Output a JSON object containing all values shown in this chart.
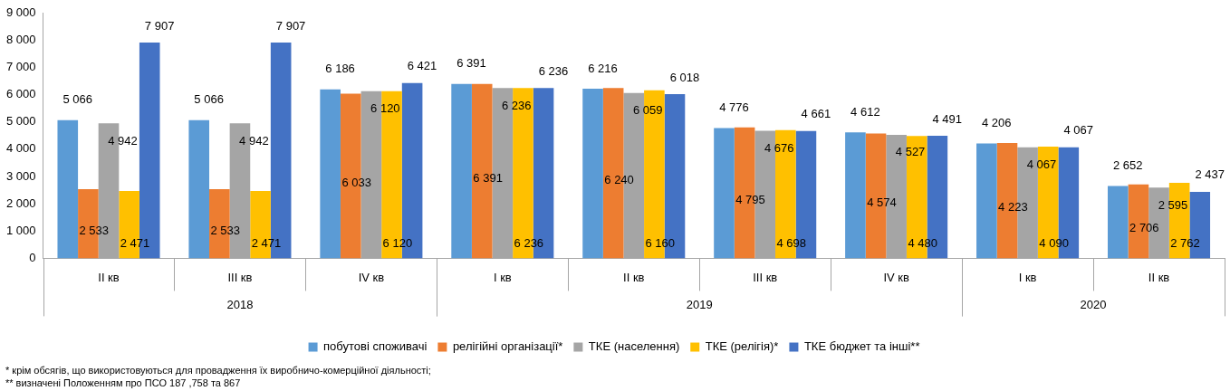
{
  "chart_data": {
    "type": "bar",
    "categories": [
      "II кв",
      "III кв",
      "IV кв",
      "I кв",
      "II кв",
      "III кв",
      "IV кв",
      "I кв",
      "II кв"
    ],
    "series": [
      {
        "name": "побутові споживачі",
        "color": "#5b9bd5",
        "values": [
          5066,
          5066,
          6186,
          6391,
          6216,
          4776,
          4612,
          4206,
          2652
        ],
        "value_labels": [
          "5 066",
          "5 066",
          "6 186",
          "6 391",
          "6 216",
          "4 776",
          "4 612",
          "4 206",
          "2 652"
        ]
      },
      {
        "name": "релігійні організації*",
        "color": "#ed7d31",
        "values": [
          2533,
          2533,
          6033,
          6391,
          6240,
          4795,
          4574,
          4223,
          2706
        ],
        "value_labels": [
          "2 533",
          "2 533",
          "6 033",
          "6 391",
          "6 240",
          "4 795",
          "4 574",
          "4 223",
          "2 706"
        ]
      },
      {
        "name": "ТКЕ (населення)",
        "color": "#a5a5a5",
        "values": [
          4942,
          4942,
          6120,
          6236,
          6059,
          4676,
          4527,
          4067,
          2595
        ],
        "value_labels": [
          "4 942",
          "4 942",
          "6 120",
          "6 236",
          "6 059",
          "4 676",
          "4 527",
          "4 067",
          "2 595"
        ]
      },
      {
        "name": "ТКЕ (релігія)*",
        "color": "#ffc000",
        "values": [
          2471,
          2471,
          6120,
          6236,
          6160,
          4698,
          4480,
          4090,
          2762
        ],
        "value_labels": [
          "2 471",
          "2 471",
          "6 120",
          "6 236",
          "6 160",
          "4 698",
          "4 480",
          "4 090",
          "2 762"
        ]
      },
      {
        "name": "ТКЕ бюджет та інші**",
        "color": "#4472c4",
        "values": [
          7907,
          7907,
          6421,
          6236,
          6018,
          4661,
          4491,
          4067,
          2437
        ],
        "value_labels": [
          "7 907",
          "7 907",
          "6 421",
          "6 236",
          "6 018",
          "4 661",
          "4 491",
          "4 067",
          "2 437"
        ]
      }
    ],
    "ylim": [
      0,
      9000
    ],
    "yticks": [
      {
        "value": 0,
        "label": "0"
      },
      {
        "value": 1000,
        "label": "1 000"
      },
      {
        "value": 2000,
        "label": "2 000"
      },
      {
        "value": 3000,
        "label": "3 000"
      },
      {
        "value": 4000,
        "label": "4 000"
      },
      {
        "value": 5000,
        "label": "5 000"
      },
      {
        "value": 6000,
        "label": "6 000"
      },
      {
        "value": 7000,
        "label": "7 000"
      },
      {
        "value": 8000,
        "label": "8 000"
      },
      {
        "value": 9000,
        "label": "9 000"
      }
    ],
    "grid": false,
    "legend": "bottom",
    "annotations": [
      "2018",
      "2019",
      "2020",
      "* крім обсягів, що використовуються для провадження їх виробничо-комерційної діяльності;",
      "** визначені Положенням про ПСО 187 ,758 та 867"
    ]
  }
}
